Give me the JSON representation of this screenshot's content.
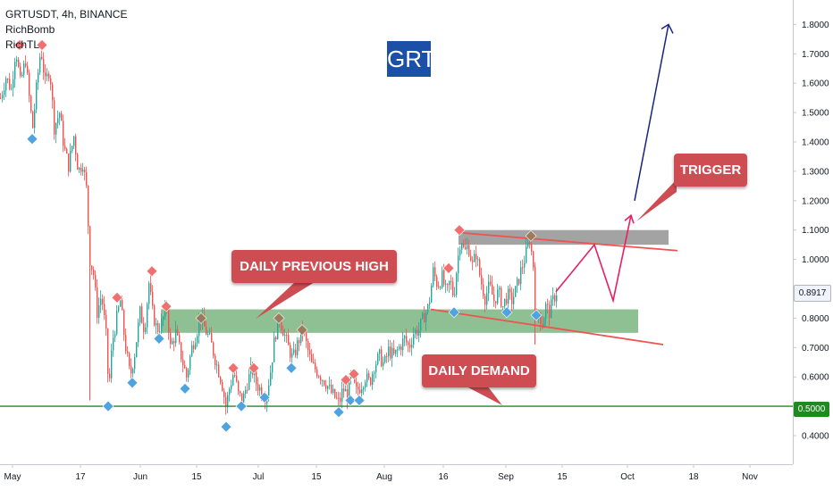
{
  "header": {
    "symbol_line": "GRTUSDT, 4h, BINANCE",
    "indicators": [
      "RichBomb",
      "RichTL"
    ]
  },
  "labels": {
    "asset": "GRT",
    "daily_previous_high": "DAILY PREVIOUS HIGH",
    "daily_demand": "DAILY DEMAND",
    "trigger": "TRIGGER"
  },
  "price_tags": {
    "last_price": "0.8917",
    "support_line": "0.5000"
  },
  "colors": {
    "bull": "#26a69a",
    "bear": "#ef5350",
    "callout": "#cd4d53",
    "demand_zone": "#6aab6f",
    "resistance_zone": "#8c8c8c",
    "support_line": "#1e8b1e",
    "projection": "#e91e63",
    "target_arrow": "#1a237e",
    "marker_high": "#f07070",
    "marker_low": "#4fa3e0",
    "marker_neutral": "#9c7a5c"
  },
  "chart_data": {
    "type": "candlestick",
    "timeframe": "4h",
    "exchange": "BINANCE",
    "symbol": "GRTUSDT",
    "x_axis": {
      "tick_labels": [
        "May",
        "17",
        "Jun",
        "15",
        "Jul",
        "15",
        "Aug",
        "16",
        "Sep",
        "15",
        "Oct",
        "18",
        "Nov"
      ]
    },
    "y_axis": {
      "tick_labels": [
        "1.8000",
        "1.7000",
        "1.6000",
        "1.5000",
        "1.4000",
        "1.3000",
        "1.2000",
        "1.1000",
        "1.0000",
        "0.9000",
        "0.8000",
        "0.7000",
        "0.6000",
        "0.5000",
        "0.4000"
      ],
      "ylim": [
        0.32,
        1.92
      ]
    },
    "price_path": [
      [
        0,
        1.55
      ],
      [
        6,
        1.62
      ],
      [
        12,
        1.58
      ],
      [
        17,
        1.72
      ],
      [
        22,
        1.6
      ],
      [
        28,
        1.68
      ],
      [
        33,
        1.52
      ],
      [
        36,
        1.45
      ],
      [
        40,
        1.58
      ],
      [
        45,
        1.72
      ],
      [
        50,
        1.6
      ],
      [
        55,
        1.65
      ],
      [
        60,
        1.45
      ],
      [
        66,
        1.5
      ],
      [
        71,
        1.38
      ],
      [
        76,
        1.32
      ],
      [
        82,
        1.42
      ],
      [
        87,
        1.3
      ],
      [
        92,
        1.33
      ],
      [
        96,
        1.24
      ],
      [
        100,
        1.0
      ],
      [
        104,
        0.95
      ],
      [
        108,
        0.82
      ],
      [
        113,
        0.88
      ],
      [
        118,
        0.74
      ],
      [
        121,
        0.55
      ],
      [
        125,
        0.72
      ],
      [
        130,
        0.8
      ],
      [
        134,
        0.86
      ],
      [
        139,
        0.72
      ],
      [
        145,
        0.6
      ],
      [
        150,
        0.68
      ],
      [
        156,
        0.82
      ],
      [
        161,
        0.76
      ],
      [
        166,
        0.92
      ],
      [
        170,
        0.82
      ],
      [
        175,
        0.76
      ],
      [
        180,
        0.78
      ],
      [
        186,
        0.84
      ],
      [
        190,
        0.7
      ],
      [
        196,
        0.75
      ],
      [
        203,
        0.66
      ],
      [
        208,
        0.6
      ],
      [
        214,
        0.7
      ],
      [
        219,
        0.75
      ],
      [
        224,
        0.8
      ],
      [
        229,
        0.76
      ],
      [
        235,
        0.72
      ],
      [
        241,
        0.65
      ],
      [
        247,
        0.59
      ],
      [
        252,
        0.5
      ],
      [
        256,
        0.56
      ],
      [
        261,
        0.62
      ],
      [
        266,
        0.54
      ],
      [
        271,
        0.52
      ],
      [
        276,
        0.58
      ],
      [
        281,
        0.63
      ],
      [
        286,
        0.58
      ],
      [
        292,
        0.55
      ],
      [
        297,
        0.53
      ],
      [
        302,
        0.62
      ],
      [
        307,
        0.74
      ],
      [
        312,
        0.8
      ],
      [
        317,
        0.75
      ],
      [
        322,
        0.7
      ],
      [
        327,
        0.66
      ],
      [
        333,
        0.72
      ],
      [
        338,
        0.76
      ],
      [
        343,
        0.7
      ],
      [
        348,
        0.64
      ],
      [
        354,
        0.62
      ],
      [
        359,
        0.6
      ],
      [
        364,
        0.58
      ],
      [
        369,
        0.55
      ],
      [
        374,
        0.53
      ],
      [
        379,
        0.51
      ],
      [
        383,
        0.56
      ],
      [
        388,
        0.54
      ],
      [
        392,
        0.6
      ],
      [
        398,
        0.55
      ],
      [
        403,
        0.57
      ],
      [
        408,
        0.6
      ],
      [
        413,
        0.58
      ],
      [
        418,
        0.64
      ],
      [
        424,
        0.67
      ],
      [
        429,
        0.64
      ],
      [
        434,
        0.69
      ],
      [
        440,
        0.67
      ],
      [
        446,
        0.7
      ],
      [
        452,
        0.73
      ],
      [
        457,
        0.7
      ],
      [
        462,
        0.75
      ],
      [
        468,
        0.76
      ],
      [
        474,
        0.81
      ],
      [
        479,
        0.84
      ],
      [
        484,
        0.96
      ],
      [
        489,
        0.91
      ],
      [
        494,
        0.94
      ],
      [
        499,
        0.88
      ],
      [
        503,
        0.93
      ],
      [
        507,
        0.87
      ],
      [
        511,
        0.99
      ],
      [
        515,
        1.08
      ],
      [
        519,
        1.02
      ],
      [
        523,
        1.05
      ],
      [
        528,
        0.98
      ],
      [
        532,
        1.02
      ],
      [
        537,
        0.93
      ],
      [
        542,
        0.87
      ],
      [
        547,
        0.91
      ],
      [
        552,
        0.86
      ],
      [
        557,
        0.89
      ],
      [
        562,
        0.84
      ],
      [
        567,
        0.88
      ],
      [
        572,
        0.86
      ],
      [
        577,
        0.9
      ],
      [
        582,
        0.96
      ],
      [
        587,
        1.01
      ],
      [
        592,
        1.07
      ],
      [
        596,
        0.98
      ],
      [
        599,
        0.76
      ],
      [
        602,
        0.82
      ],
      [
        606,
        0.78
      ],
      [
        610,
        0.84
      ],
      [
        614,
        0.82
      ],
      [
        618,
        0.86
      ],
      [
        622,
        0.89
      ]
    ],
    "projection_path": [
      [
        622,
        0.89
      ],
      [
        665,
        1.05
      ],
      [
        686,
        0.86
      ],
      [
        706,
        1.15
      ]
    ],
    "target_arrow": [
      [
        710,
        1.2
      ],
      [
        748,
        1.8
      ]
    ],
    "zones": [
      {
        "label": "DAILY DEMAND",
        "x_start": 180,
        "x_end": 714,
        "y_low": 0.75,
        "y_high": 0.83
      },
      {
        "label": "resistance",
        "x_start": 513,
        "x_end": 748,
        "y_low": 1.05,
        "y_high": 1.1
      }
    ],
    "lines": [
      {
        "name": "support",
        "y": 0.5
      },
      {
        "name": "upper-trendline",
        "points": [
          [
            518,
            1.09
          ],
          [
            758,
            1.03
          ]
        ]
      },
      {
        "name": "lower-trendline",
        "points": [
          [
            482,
            0.83
          ],
          [
            742,
            0.71
          ]
        ]
      }
    ],
    "markers": [
      {
        "type": "high",
        "x": 22,
        "y": 1.73
      },
      {
        "type": "high",
        "x": 47,
        "y": 1.73
      },
      {
        "type": "low",
        "x": 36,
        "y": 1.41
      },
      {
        "type": "high",
        "x": 131,
        "y": 0.87
      },
      {
        "type": "high",
        "x": 170,
        "y": 0.96
      },
      {
        "type": "high",
        "x": 186,
        "y": 0.84
      },
      {
        "type": "low",
        "x": 121,
        "y": 0.5
      },
      {
        "type": "low",
        "x": 148,
        "y": 0.58
      },
      {
        "type": "low",
        "x": 178,
        "y": 0.73
      },
      {
        "type": "low",
        "x": 207,
        "y": 0.56
      },
      {
        "type": "neutral",
        "x": 225,
        "y": 0.8
      },
      {
        "type": "high",
        "x": 261,
        "y": 0.63
      },
      {
        "type": "high",
        "x": 284,
        "y": 0.63
      },
      {
        "type": "low",
        "x": 253,
        "y": 0.43
      },
      {
        "type": "low",
        "x": 270,
        "y": 0.5
      },
      {
        "type": "low",
        "x": 296,
        "y": 0.53
      },
      {
        "type": "neutral",
        "x": 312,
        "y": 0.8
      },
      {
        "type": "neutral",
        "x": 338,
        "y": 0.76
      },
      {
        "type": "low",
        "x": 326,
        "y": 0.63
      },
      {
        "type": "high",
        "x": 387,
        "y": 0.59
      },
      {
        "type": "high",
        "x": 396,
        "y": 0.61
      },
      {
        "type": "low",
        "x": 379,
        "y": 0.48
      },
      {
        "type": "low",
        "x": 392,
        "y": 0.52
      },
      {
        "type": "low",
        "x": 402,
        "y": 0.52
      },
      {
        "type": "high",
        "x": 502,
        "y": 0.97
      },
      {
        "type": "high",
        "x": 514,
        "y": 1.1
      },
      {
        "type": "low",
        "x": 508,
        "y": 0.82
      },
      {
        "type": "low",
        "x": 567,
        "y": 0.82
      },
      {
        "type": "neutral",
        "x": 594,
        "y": 1.08
      },
      {
        "type": "low",
        "x": 600,
        "y": 0.81
      }
    ]
  }
}
